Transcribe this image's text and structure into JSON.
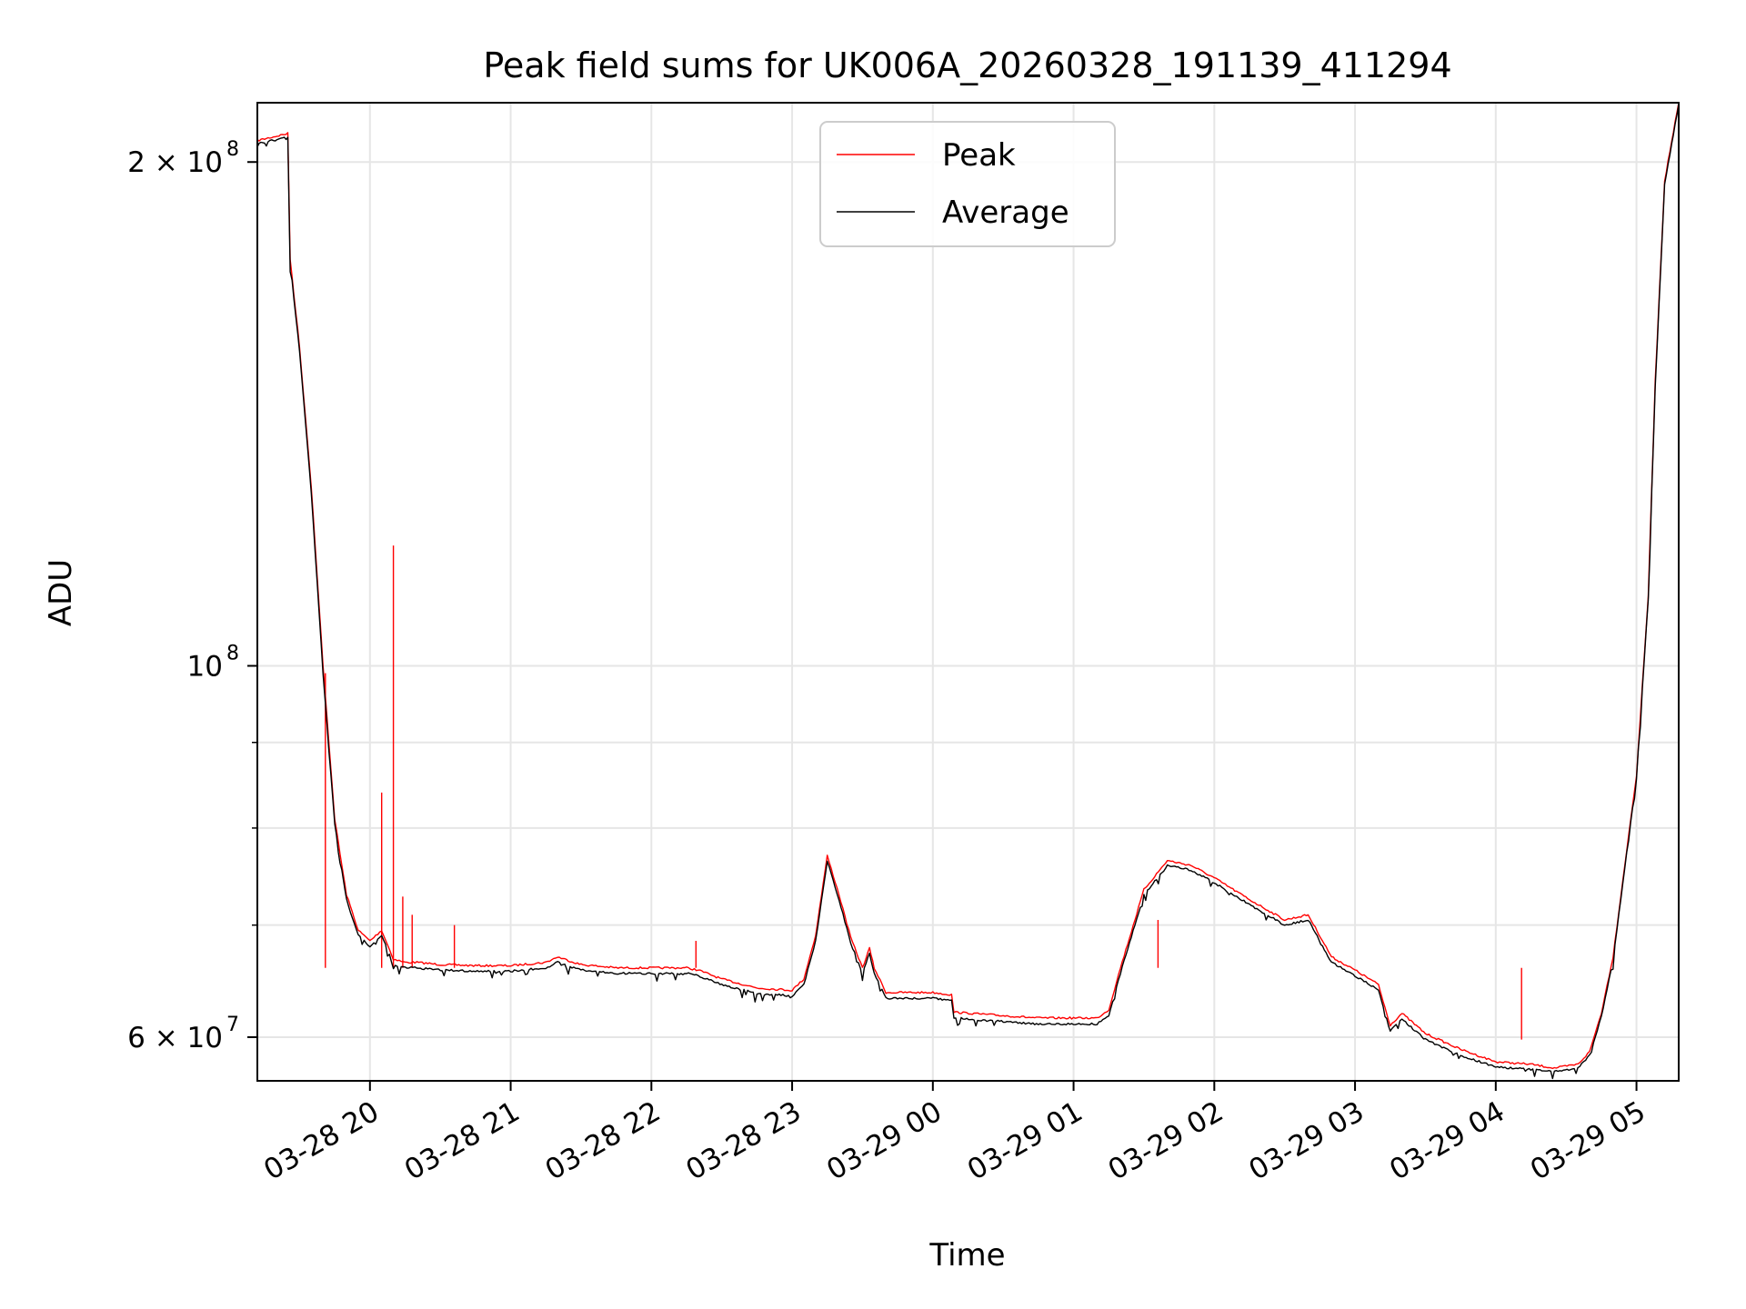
{
  "chart_data": {
    "type": "line",
    "title": "Peak field sums for UK006A_20260328_191139_411294",
    "xlabel": "Time",
    "ylabel": "ADU",
    "y_scale": "log",
    "ylim": [
      56500000,
      217000000
    ],
    "xlim": [
      "2026-03-28 19:12",
      "2026-03-29 05:18"
    ],
    "grid": true,
    "legend_position": "upper center",
    "x_ticks": [
      {
        "t": "2026-03-28 20:00",
        "label": "03-28 20"
      },
      {
        "t": "2026-03-28 21:00",
        "label": "03-28 21"
      },
      {
        "t": "2026-03-28 22:00",
        "label": "03-28 22"
      },
      {
        "t": "2026-03-28 23:00",
        "label": "03-28 23"
      },
      {
        "t": "2026-03-29 00:00",
        "label": "03-29 00"
      },
      {
        "t": "2026-03-29 01:00",
        "label": "03-29 01"
      },
      {
        "t": "2026-03-29 02:00",
        "label": "03-29 02"
      },
      {
        "t": "2026-03-29 03:00",
        "label": "03-29 03"
      },
      {
        "t": "2026-03-29 04:00",
        "label": "03-29 04"
      },
      {
        "t": "2026-03-29 05:00",
        "label": "03-29 05"
      }
    ],
    "y_ticks": [
      {
        "value": 60000000,
        "label": "6 × 10^7",
        "base": "6 × 10",
        "exp": "7"
      },
      {
        "value": 100000000,
        "label": "10^8",
        "base": "10",
        "exp": "8"
      },
      {
        "value": 200000000,
        "label": "2 × 10^8",
        "base": "2 × 10",
        "exp": "8"
      }
    ],
    "y_minor_ticks": [
      70000000,
      80000000,
      90000000
    ],
    "series": [
      {
        "name": "Peak",
        "color": "#ff0000",
        "x": [
          "2026-03-28 19:12",
          "2026-03-28 19:25",
          "2026-03-28 19:26",
          "2026-03-28 19:30",
          "2026-03-28 19:35",
          "2026-03-28 19:40",
          "2026-03-28 19:45",
          "2026-03-28 19:48",
          "2026-03-28 19:50",
          "2026-03-28 19:55",
          "2026-03-28 20:00",
          "2026-03-28 20:05",
          "2026-03-28 20:10",
          "2026-03-28 20:15",
          "2026-03-28 20:20",
          "2026-03-28 20:30",
          "2026-03-28 20:45",
          "2026-03-28 21:00",
          "2026-03-28 21:15",
          "2026-03-28 21:20",
          "2026-03-28 21:30",
          "2026-03-28 21:45",
          "2026-03-28 22:00",
          "2026-03-28 22:15",
          "2026-03-28 22:20",
          "2026-03-28 22:30",
          "2026-03-28 22:45",
          "2026-03-28 23:00",
          "2026-03-28 23:05",
          "2026-03-28 23:10",
          "2026-03-28 23:15",
          "2026-03-28 23:20",
          "2026-03-28 23:25",
          "2026-03-28 23:30",
          "2026-03-28 23:33",
          "2026-03-28 23:35",
          "2026-03-28 23:40",
          "2026-03-28 23:45",
          "2026-03-29 00:00",
          "2026-03-29 00:08",
          "2026-03-29 00:09",
          "2026-03-29 00:30",
          "2026-03-29 00:45",
          "2026-03-29 01:00",
          "2026-03-29 01:10",
          "2026-03-29 01:15",
          "2026-03-29 01:20",
          "2026-03-29 01:30",
          "2026-03-29 01:40",
          "2026-03-29 01:50",
          "2026-03-29 02:00",
          "2026-03-29 02:15",
          "2026-03-29 02:30",
          "2026-03-29 02:40",
          "2026-03-29 02:50",
          "2026-03-29 03:00",
          "2026-03-29 03:10",
          "2026-03-29 03:12",
          "2026-03-29 03:15",
          "2026-03-29 03:20",
          "2026-03-29 03:30",
          "2026-03-29 03:45",
          "2026-03-29 04:00",
          "2026-03-29 04:15",
          "2026-03-29 04:25",
          "2026-03-29 04:35",
          "2026-03-29 04:40",
          "2026-03-29 04:45",
          "2026-03-29 04:50",
          "2026-03-29 04:55",
          "2026-03-29 05:00",
          "2026-03-29 05:05",
          "2026-03-29 05:08",
          "2026-03-29 05:12",
          "2026-03-29 05:18"
        ],
        "y": [
          206000000,
          208000000,
          175000000,
          155000000,
          128000000,
          100000000,
          81000000,
          76000000,
          73000000,
          69500000,
          68500000,
          69500000,
          66800000,
          66500000,
          66500000,
          66300000,
          66200000,
          66200000,
          66500000,
          67000000,
          66300000,
          66000000,
          66000000,
          66000000,
          65800000,
          65000000,
          64200000,
          64000000,
          65000000,
          69000000,
          77000000,
          73000000,
          68800000,
          66000000,
          67800000,
          66000000,
          63800000,
          63800000,
          63800000,
          63600000,
          62100000,
          61800000,
          61600000,
          61600000,
          61600000,
          62300000,
          66000000,
          73500000,
          76500000,
          76000000,
          74700000,
          72500000,
          70500000,
          71000000,
          67000000,
          65800000,
          64500000,
          63000000,
          61000000,
          62000000,
          60300000,
          59000000,
          58000000,
          57800000,
          57500000,
          57800000,
          58800000,
          62000000,
          67000000,
          76000000,
          86000000,
          110000000,
          148000000,
          195000000,
          217000000
        ],
        "spikes": [
          {
            "x": "2026-03-28 19:41",
            "y": 99000000
          },
          {
            "x": "2026-03-28 20:05",
            "y": 84000000
          },
          {
            "x": "2026-03-28 20:10",
            "y": 118000000
          },
          {
            "x": "2026-03-28 20:14",
            "y": 72800000
          },
          {
            "x": "2026-03-28 20:18",
            "y": 71000000
          },
          {
            "x": "2026-03-28 20:36",
            "y": 70000000
          },
          {
            "x": "2026-03-28 22:19",
            "y": 68500000
          },
          {
            "x": "2026-03-29 01:36",
            "y": 70500000
          },
          {
            "x": "2026-03-29 04:11",
            "y": 59800000
          }
        ]
      },
      {
        "name": "Average",
        "color": "#000000",
        "x": [
          "2026-03-28 19:12",
          "2026-03-28 19:25",
          "2026-03-28 19:26",
          "2026-03-28 19:30",
          "2026-03-28 19:35",
          "2026-03-28 19:40",
          "2026-03-28 19:45",
          "2026-03-28 19:48",
          "2026-03-28 19:50",
          "2026-03-28 19:55",
          "2026-03-28 20:00",
          "2026-03-28 20:05",
          "2026-03-28 20:10",
          "2026-03-28 20:15",
          "2026-03-28 20:20",
          "2026-03-28 20:30",
          "2026-03-28 20:45",
          "2026-03-28 21:00",
          "2026-03-28 21:15",
          "2026-03-28 21:20",
          "2026-03-28 21:30",
          "2026-03-28 21:45",
          "2026-03-28 22:00",
          "2026-03-28 22:15",
          "2026-03-28 22:20",
          "2026-03-28 22:30",
          "2026-03-28 22:45",
          "2026-03-28 23:00",
          "2026-03-28 23:05",
          "2026-03-28 23:10",
          "2026-03-28 23:15",
          "2026-03-28 23:20",
          "2026-03-28 23:25",
          "2026-03-28 23:30",
          "2026-03-28 23:33",
          "2026-03-28 23:35",
          "2026-03-28 23:40",
          "2026-03-28 23:45",
          "2026-03-29 00:00",
          "2026-03-29 00:08",
          "2026-03-29 00:09",
          "2026-03-29 00:30",
          "2026-03-29 00:45",
          "2026-03-29 01:00",
          "2026-03-29 01:10",
          "2026-03-29 01:15",
          "2026-03-29 01:20",
          "2026-03-29 01:30",
          "2026-03-29 01:40",
          "2026-03-29 01:50",
          "2026-03-29 02:00",
          "2026-03-29 02:15",
          "2026-03-29 02:30",
          "2026-03-29 02:40",
          "2026-03-29 02:50",
          "2026-03-29 03:00",
          "2026-03-29 03:10",
          "2026-03-29 03:12",
          "2026-03-29 03:15",
          "2026-03-29 03:20",
          "2026-03-29 03:30",
          "2026-03-29 03:45",
          "2026-03-29 04:00",
          "2026-03-29 04:15",
          "2026-03-29 04:25",
          "2026-03-29 04:35",
          "2026-03-29 04:40",
          "2026-03-29 04:45",
          "2026-03-29 04:50",
          "2026-03-29 04:55",
          "2026-03-29 05:00",
          "2026-03-29 05:05",
          "2026-03-29 05:08",
          "2026-03-29 05:12",
          "2026-03-29 05:18"
        ],
        "y": [
          205000000,
          207000000,
          174000000,
          154000000,
          127000000,
          99000000,
          80500000,
          75500000,
          72500000,
          69000000,
          68000000,
          69000000,
          66300000,
          66000000,
          66000000,
          65800000,
          65700000,
          65700000,
          66000000,
          66500000,
          65800000,
          65500000,
          65500000,
          65500000,
          65300000,
          64500000,
          63700000,
          63500000,
          64500000,
          68500000,
          76500000,
          72500000,
          68300000,
          65500000,
          67300000,
          65500000,
          63300000,
          63300000,
          63300000,
          63100000,
          61600000,
          61300000,
          61100000,
          61100000,
          61100000,
          61800000,
          65500000,
          73000000,
          76000000,
          75500000,
          74200000,
          72000000,
          70000000,
          70500000,
          66500000,
          65300000,
          64000000,
          62500000,
          60500000,
          61500000,
          59800000,
          58500000,
          57600000,
          57400000,
          57200000,
          57500000,
          58500000,
          61700000,
          66700000,
          75700000,
          85700000,
          109500000,
          147000000,
          194000000,
          216500000
        ]
      }
    ]
  }
}
